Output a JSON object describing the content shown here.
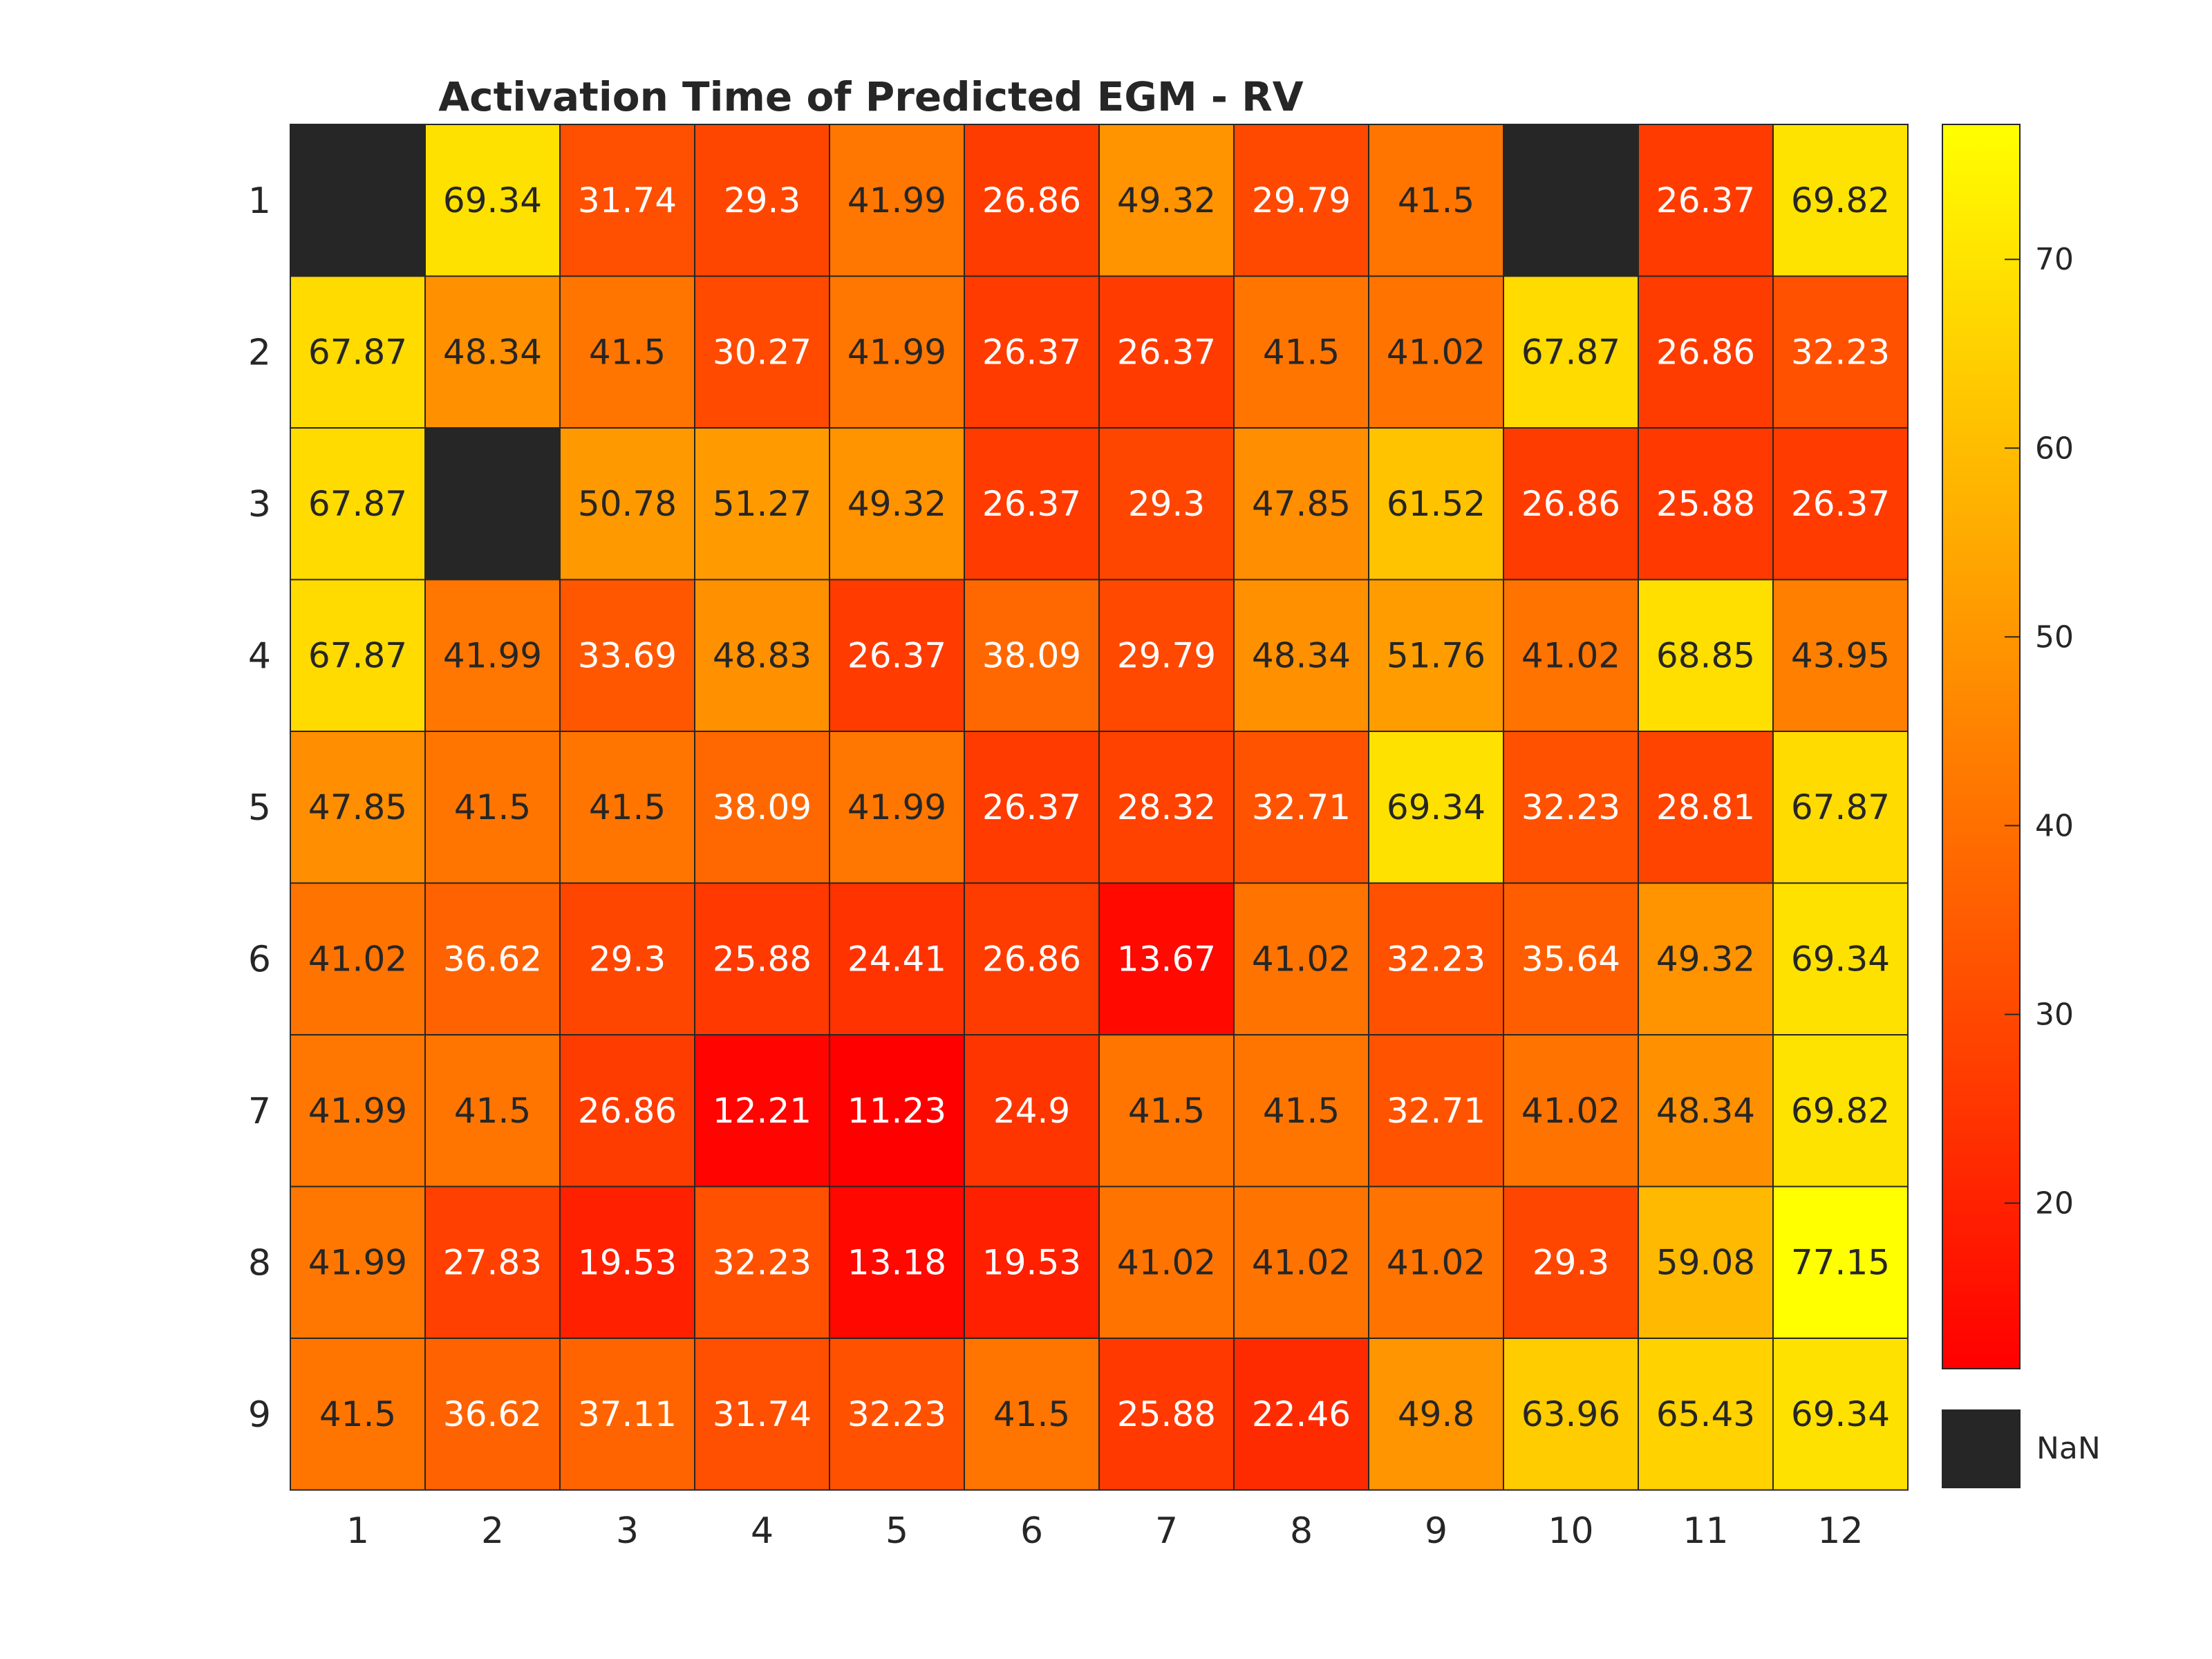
{
  "chart_data": {
    "type": "heatmap",
    "title": "Activation Time of Predicted EGM - RV",
    "x_ticks": [
      "1",
      "2",
      "3",
      "4",
      "5",
      "6",
      "7",
      "8",
      "9",
      "10",
      "11",
      "12"
    ],
    "y_ticks": [
      "1",
      "2",
      "3",
      "4",
      "5",
      "6",
      "7",
      "8",
      "9"
    ],
    "values": [
      [
        null,
        69.34,
        31.74,
        29.3,
        41.99,
        26.86,
        49.32,
        29.79,
        41.5,
        null,
        26.37,
        69.82
      ],
      [
        67.87,
        48.34,
        41.5,
        30.27,
        41.99,
        26.37,
        26.37,
        41.5,
        41.02,
        67.87,
        26.86,
        32.23
      ],
      [
        67.87,
        null,
        50.78,
        51.27,
        49.32,
        26.37,
        29.3,
        47.85,
        61.52,
        26.86,
        25.88,
        26.37
      ],
      [
        67.87,
        41.99,
        33.69,
        48.83,
        26.37,
        38.09,
        29.79,
        48.34,
        51.76,
        41.02,
        68.85,
        43.95
      ],
      [
        47.85,
        41.5,
        41.5,
        38.09,
        41.99,
        26.37,
        28.32,
        32.71,
        69.34,
        32.23,
        28.81,
        67.87
      ],
      [
        41.02,
        36.62,
        29.3,
        25.88,
        24.41,
        26.86,
        13.67,
        41.02,
        32.23,
        35.64,
        49.32,
        69.34
      ],
      [
        41.99,
        41.5,
        26.86,
        12.21,
        11.23,
        24.9,
        41.5,
        41.5,
        32.71,
        41.02,
        48.34,
        69.82
      ],
      [
        41.99,
        27.83,
        19.53,
        32.23,
        13.18,
        19.53,
        41.02,
        41.02,
        41.02,
        29.3,
        59.08,
        77.15
      ],
      [
        41.5,
        36.62,
        37.11,
        31.74,
        32.23,
        41.5,
        25.88,
        22.46,
        49.8,
        63.96,
        65.43,
        69.34
      ]
    ],
    "colorbar": {
      "range": [
        11.23,
        77.15
      ],
      "ticks": [
        20,
        30,
        40,
        50,
        60,
        70
      ],
      "colormap": "autumn",
      "low_color": "#ff0000",
      "high_color": "#ffff00"
    },
    "missing": {
      "label": "NaN",
      "color": "#262626"
    },
    "grid": true
  }
}
